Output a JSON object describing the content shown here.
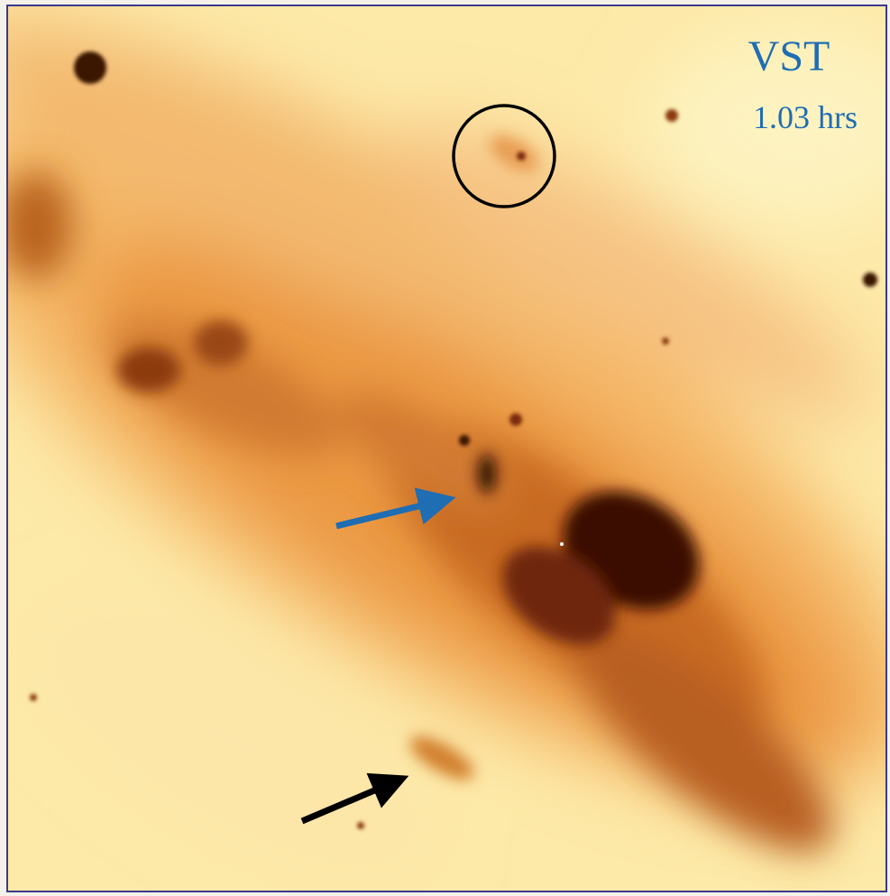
{
  "labels": {
    "telescope": "VST",
    "exposure": "1.03 hrs"
  }
}
